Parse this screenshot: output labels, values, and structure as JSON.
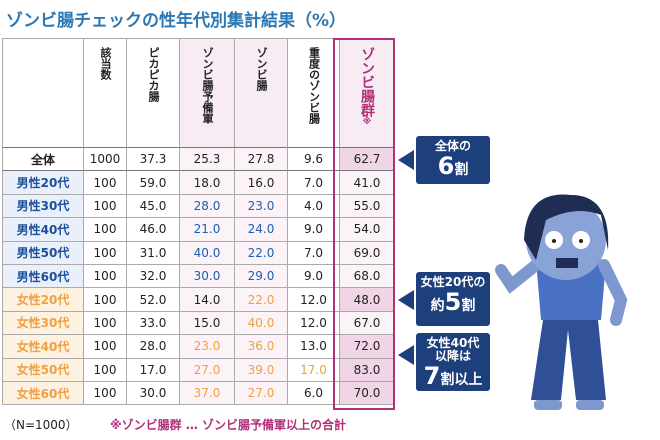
{
  "title": "ゾンビ腸チェックの性年代別集計結果（%）",
  "table": {
    "headers": [
      "該当数",
      "ピカピカ腸",
      "ゾンビ腸予備軍",
      "ゾンビ腸",
      "重度のゾンビ腸",
      "ゾンビ腸群"
    ],
    "header_note": "※",
    "rows": [
      [
        "全体",
        "1000",
        "37.3",
        "25.3",
        "27.8",
        "9.6",
        "62.7"
      ],
      [
        "男性20代",
        "100",
        "59.0",
        "18.0",
        "16.0",
        "7.0",
        "41.0"
      ],
      [
        "男性30代",
        "100",
        "45.0",
        "28.0",
        "23.0",
        "4.0",
        "55.0"
      ],
      [
        "男性40代",
        "100",
        "46.0",
        "21.0",
        "24.0",
        "9.0",
        "54.0"
      ],
      [
        "男性50代",
        "100",
        "31.0",
        "40.0",
        "22.0",
        "7.0",
        "69.0"
      ],
      [
        "男性60代",
        "100",
        "32.0",
        "30.0",
        "29.0",
        "9.0",
        "68.0"
      ],
      [
        "女性20代",
        "100",
        "52.0",
        "14.0",
        "22.0",
        "12.0",
        "48.0"
      ],
      [
        "女性30代",
        "100",
        "33.0",
        "15.0",
        "40.0",
        "12.0",
        "67.0"
      ],
      [
        "女性40代",
        "100",
        "28.0",
        "23.0",
        "36.0",
        "13.0",
        "72.0"
      ],
      [
        "女性50代",
        "100",
        "17.0",
        "27.0",
        "39.0",
        "17.0",
        "83.0"
      ],
      [
        "女性60代",
        "100",
        "30.0",
        "37.0",
        "27.0",
        "6.0",
        "70.0"
      ]
    ]
  },
  "footer": {
    "n": "（N=1000）",
    "note": "※ゾンビ腸群 … ゾンビ腸予備軍以上の合計"
  },
  "callouts": [
    [
      "全体の",
      "6",
      "割"
    ],
    [
      "女性20代の",
      "約",
      "5",
      "割"
    ],
    [
      "女性40代",
      "以降は",
      "7",
      "割以上"
    ]
  ]
}
